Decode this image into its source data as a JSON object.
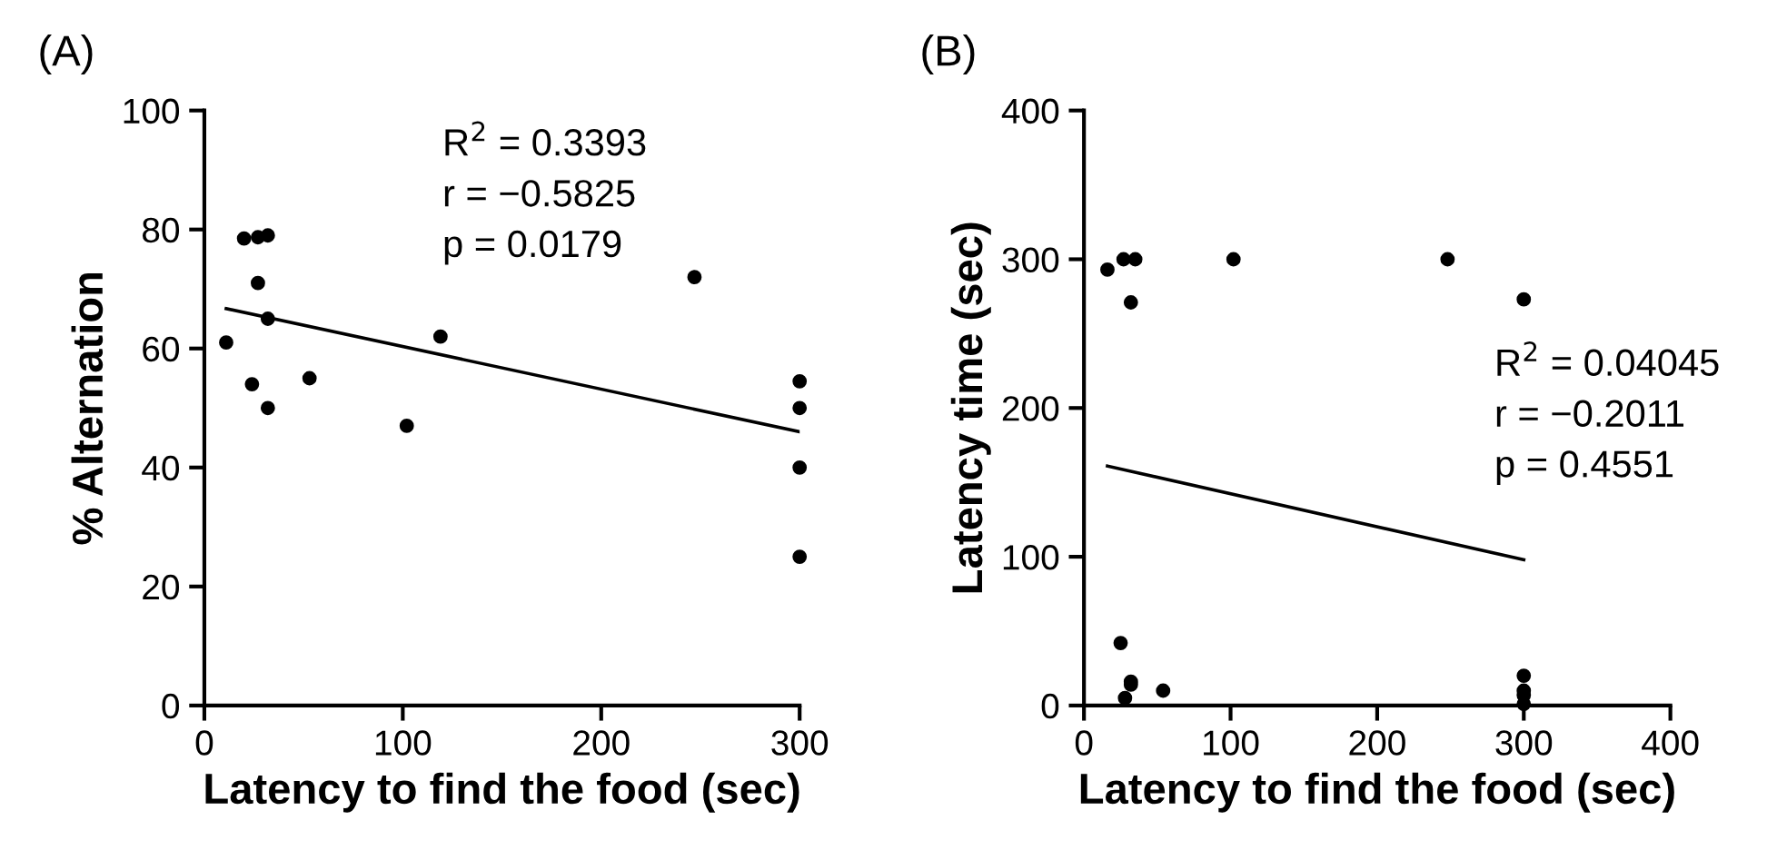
{
  "chart_data": [
    {
      "type": "scatter",
      "title": "(A)",
      "xlabel": "Latency to find the food (sec)",
      "ylabel": "% Alternation",
      "xlim": [
        0,
        300
      ],
      "xticks": [
        0,
        100,
        200,
        300
      ],
      "ylim": [
        0,
        100
      ],
      "yticks": [
        0,
        20,
        40,
        60,
        80,
        100
      ],
      "grid": false,
      "series": [
        {
          "marker": "circle",
          "color": "#000000",
          "x": [
            11,
            20,
            27,
            32,
            27,
            32,
            24,
            32,
            53,
            102,
            119,
            247,
            300,
            300,
            300,
            300
          ],
          "values": [
            61,
            78.5,
            78.7,
            79,
            71,
            65,
            54,
            50,
            55,
            47,
            62,
            72,
            54.5,
            50,
            40,
            25
          ]
        },
        {
          "type": "line",
          "marker": "none",
          "color": "#000000",
          "x": [
            11,
            300
          ],
          "values": [
            66.7,
            46
          ]
        }
      ],
      "annotations": [
        "R$^{2}$ = 0.3393",
        "r = −0.5825",
        "p = 0.0179"
      ]
    },
    {
      "type": "scatter",
      "title": "(B)",
      "xlabel": "Latency to find the food (sec)",
      "ylabel": "Latency time (sec)",
      "xlim": [
        0,
        400
      ],
      "xticks": [
        0,
        100,
        200,
        300,
        400
      ],
      "ylim": [
        0,
        400
      ],
      "yticks": [
        0,
        100,
        200,
        300,
        400
      ],
      "grid": false,
      "series": [
        {
          "marker": "circle",
          "color": "#000000",
          "x": [
            16,
            27,
            35,
            32,
            102,
            248,
            300,
            25,
            32,
            32,
            28,
            54,
            300,
            300,
            300,
            300
          ],
          "values": [
            293,
            300,
            300,
            271,
            300,
            300,
            273,
            42,
            16,
            14,
            5,
            10,
            20,
            10,
            7,
            1
          ]
        },
        {
          "type": "line",
          "marker": "none",
          "color": "#000000",
          "x": [
            16,
            300
          ],
          "values": [
            161,
            98
          ]
        }
      ],
      "annotations": [
        "R$^{2}$ = 0.04045",
        "r = −0.2011",
        "p = 0.4551"
      ]
    }
  ]
}
